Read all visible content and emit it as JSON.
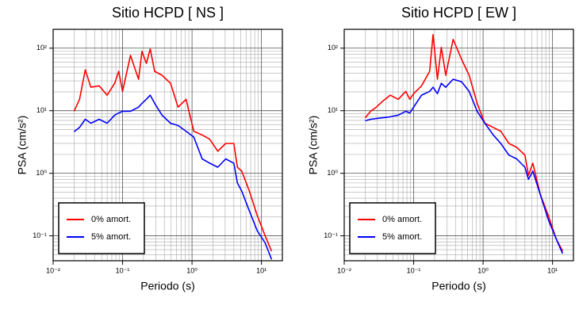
{
  "chart_data": [
    {
      "type": "line",
      "title": "Sitio HCPD [ NS ]",
      "xlabel": "Periodo (s)",
      "ylabel": "PSA (cm/s²)",
      "xscale": "log",
      "yscale": "log",
      "grid": true,
      "legend": "lower left",
      "xlim": [
        0.01,
        20
      ],
      "ylim": [
        0.04,
        200
      ],
      "xticks": [
        {
          "value": 0.01,
          "label": "10⁻²"
        },
        {
          "value": 0.1,
          "label": "10⁻¹"
        },
        {
          "value": 1,
          "label": "10⁰"
        },
        {
          "value": 10,
          "label": "10¹"
        }
      ],
      "yticks": [
        {
          "value": 0.1,
          "label": "10⁻¹"
        },
        {
          "value": 1,
          "label": "10⁰"
        },
        {
          "value": 10,
          "label": "10¹"
        },
        {
          "value": 100,
          "label": "10²"
        }
      ],
      "x": [
        0.02,
        0.024,
        0.029,
        0.035,
        0.046,
        0.06,
        0.077,
        0.088,
        0.1,
        0.13,
        0.17,
        0.19,
        0.22,
        0.25,
        0.29,
        0.37,
        0.49,
        0.63,
        0.82,
        1.06,
        1.4,
        1.8,
        2.35,
        3.05,
        4.0,
        4.5,
        5.2,
        6.7,
        8.7,
        11.3,
        14
      ],
      "series": [
        {
          "name": "0% amort.",
          "color": "#ff0000",
          "values": [
            9.8,
            15.2,
            45,
            23.7,
            25,
            17.7,
            27.4,
            42.6,
            20.4,
            76.7,
            31.8,
            89,
            57,
            97,
            42.6,
            36.8,
            27.4,
            11.4,
            15.2,
            4.7,
            4.1,
            3.5,
            2.25,
            3.0,
            3.0,
            1.25,
            1.08,
            0.52,
            0.21,
            0.1,
            0.057
          ]
        },
        {
          "name": "5% amort.",
          "color": "#0000ff",
          "values": [
            4.6,
            5.4,
            7.3,
            6.3,
            7.3,
            6.3,
            8.5,
            9.2,
            9.8,
            9.8,
            11.4,
            13.1,
            15.2,
            17.7,
            13.1,
            8.5,
            6.3,
            5.8,
            4.7,
            3.8,
            1.7,
            1.45,
            1.25,
            1.7,
            1.45,
            0.7,
            0.52,
            0.25,
            0.12,
            0.077,
            0.042
          ]
        }
      ]
    },
    {
      "type": "line",
      "title": "Sitio HCPD [ EW ]",
      "xlabel": "Periodo (s)",
      "ylabel": "PSA (cm/s²)",
      "xscale": "log",
      "yscale": "log",
      "grid": true,
      "legend": "lower left",
      "xlim": [
        0.01,
        20
      ],
      "ylim": [
        0.04,
        200
      ],
      "xticks": [
        {
          "value": 0.01,
          "label": "10⁻²"
        },
        {
          "value": 0.1,
          "label": "10⁻¹"
        },
        {
          "value": 1,
          "label": "10⁰"
        },
        {
          "value": 10,
          "label": "10¹"
        }
      ],
      "yticks": [
        {
          "value": 0.1,
          "label": "10⁻¹"
        },
        {
          "value": 1,
          "label": "10⁰"
        },
        {
          "value": 10,
          "label": "10¹"
        },
        {
          "value": 100,
          "label": "10²"
        }
      ],
      "x": [
        0.02,
        0.024,
        0.029,
        0.035,
        0.046,
        0.06,
        0.077,
        0.088,
        0.1,
        0.13,
        0.17,
        0.19,
        0.22,
        0.25,
        0.29,
        0.37,
        0.49,
        0.63,
        0.82,
        1.06,
        1.4,
        1.8,
        2.35,
        3.05,
        4.0,
        4.5,
        5.2,
        6.7,
        8.7,
        11.3,
        14
      ],
      "series": [
        {
          "name": "0% amort.",
          "color": "#ff0000",
          "values": [
            7.7,
            9.8,
            11.4,
            13.9,
            17.7,
            15.2,
            20.4,
            15.2,
            18.7,
            25,
            42.6,
            165,
            31.8,
            103,
            36.8,
            138,
            66,
            36.8,
            13.1,
            6.3,
            5.4,
            4.7,
            3.0,
            2.6,
            1.95,
            0.93,
            1.45,
            0.45,
            0.21,
            0.089,
            0.057
          ]
        },
        {
          "name": "5% amort.",
          "color": "#0000ff",
          "values": [
            6.9,
            7.3,
            7.5,
            7.7,
            8.0,
            8.5,
            9.8,
            9.2,
            11.4,
            17.7,
            20.4,
            23.7,
            18.7,
            27.4,
            23.7,
            31.8,
            29,
            20.4,
            9.8,
            6.3,
            4.1,
            3.0,
            1.95,
            1.7,
            1.25,
            0.8,
            1.08,
            0.45,
            0.18,
            0.089,
            0.052
          ]
        }
      ]
    }
  ]
}
